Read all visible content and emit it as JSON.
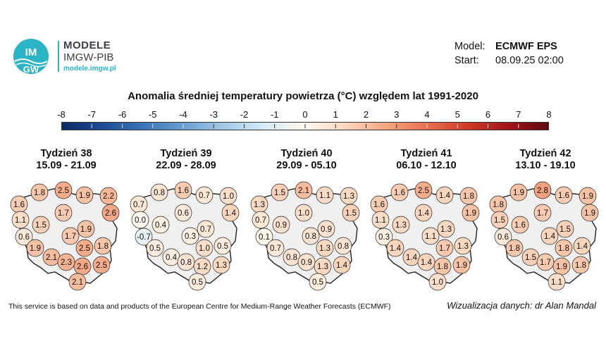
{
  "logo": {
    "badge_top": "IM",
    "badge_bottom": "GW",
    "line1": "MODELE",
    "line2": "IMGW-PIB",
    "line3": "modele.imgw.pl"
  },
  "model_info": {
    "model_label": "Model:",
    "model_value": "ECMWF EPS",
    "start_label": "Start:",
    "start_value": "08.09.25 02:00"
  },
  "title": "Anomalia średniej temperatury powietrza (°C) względem lat 1991-2020",
  "colorbar": {
    "ticks": [
      "-8",
      "-7",
      "-6",
      "-5",
      "-4",
      "-3",
      "-2",
      "-1",
      "0",
      "1",
      "2",
      "3",
      "4",
      "5",
      "6",
      "7",
      "8"
    ],
    "min": -8,
    "max": 8,
    "colors": [
      "#0d2a63",
      "#1d4b96",
      "#3b73b7",
      "#6a9fd0",
      "#a3c9e6",
      "#d6ebf5",
      "#fff8ee",
      "#fbd7bf",
      "#f4a683",
      "#e8704f",
      "#cf3a26",
      "#a3151a",
      "#5e0a12"
    ]
  },
  "weeks": [
    {
      "title": "Tydzień 38",
      "dates": "15.09 - 21.09",
      "values": [
        "2.5",
        "1.8",
        "1.9",
        "2.2",
        "1.6",
        "2.6",
        "1.7",
        "1.1",
        "1.5",
        "1.9",
        "1.7",
        "0.6",
        "2.5",
        "1.8",
        "1.9",
        "2.1",
        "2.3",
        "2.6",
        "2.5",
        "2.1"
      ]
    },
    {
      "title": "Tydzień 39",
      "dates": "22.09 - 28.09",
      "values": [
        "1.6",
        "0.8",
        "0.7",
        "1.0",
        "0.7",
        "1.4",
        "0.6",
        "0.0",
        "0.4",
        "0.7",
        "0.3",
        "-0.7",
        "1.0",
        "0.5",
        "0.5",
        "0.4",
        "0.8",
        "1.2",
        "1.3",
        "0.5"
      ]
    },
    {
      "title": "Tydzień 40",
      "dates": "29.09 - 05.10",
      "values": [
        "2.1",
        "1.5",
        "1.1",
        "1.3",
        "1.3",
        "1.5",
        "1.0",
        "0.7",
        "0.9",
        "0.9",
        "0.8",
        "0.1",
        "1.3",
        "0.8",
        "0.7",
        "0.8",
        "0.9",
        "1.3",
        "1.4",
        "0.5"
      ]
    },
    {
      "title": "Tydzień 41",
      "dates": "06.10 - 12.10",
      "values": [
        "2.5",
        "1.6",
        "1.4",
        "1.8",
        "1.6",
        "1.9",
        "1.4",
        "1.1",
        "1.3",
        "1.3",
        "1.1",
        "0.3",
        "1.7",
        "1.3",
        "1.4",
        "1.4",
        "1.4",
        "1.8",
        "1.9",
        "1.0"
      ]
    },
    {
      "title": "Tydzień 42",
      "dates": "13.10 - 19.10",
      "values": [
        "2.8",
        "1.9",
        "1.6",
        "1.9",
        "1.8",
        "1.9",
        "1.7",
        "1.5",
        "1.6",
        "1.5",
        "1.4",
        "0.6",
        "1.8",
        "1.4",
        "1.8",
        "1.5",
        "1.7",
        "1.9",
        "1.8",
        "1.1"
      ]
    }
  ],
  "footer": {
    "left": "This service is based on data and products of the European Centre for Medium-Range Weather Forecasts (ECMWF)",
    "right": "Wizualizacja danych: dr Alan Mandal"
  }
}
